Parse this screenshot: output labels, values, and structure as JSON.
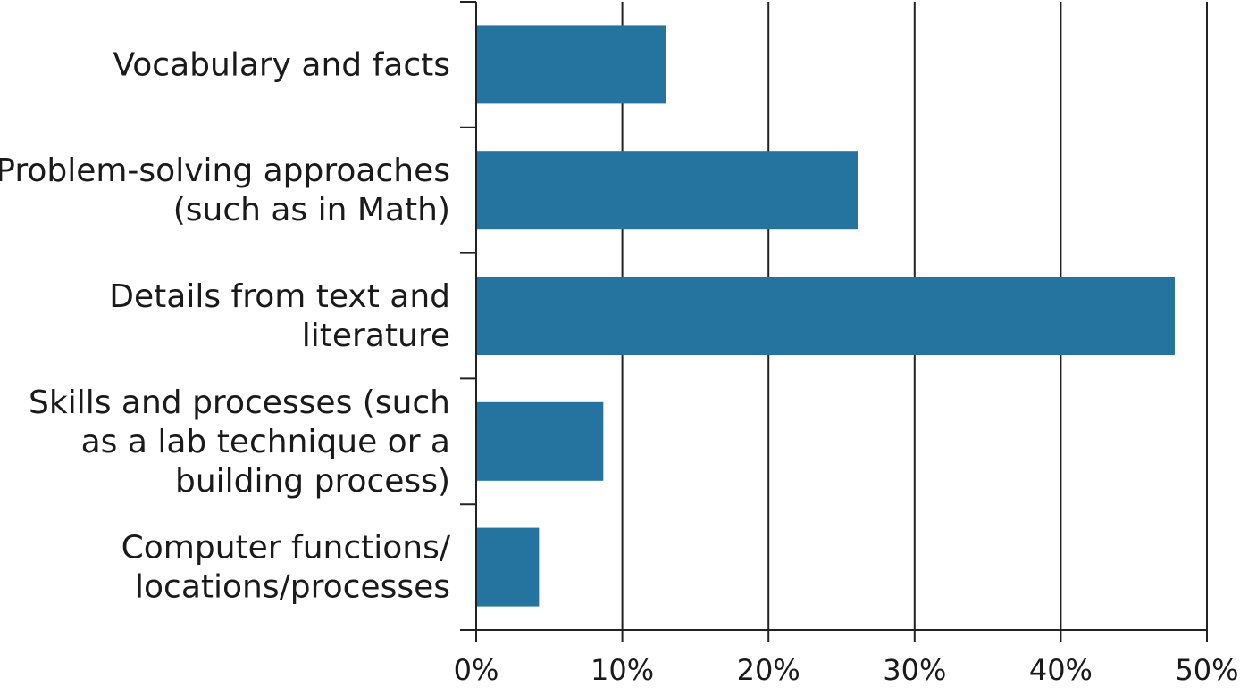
{
  "chart_data": {
    "type": "bar",
    "orientation": "horizontal",
    "title": "",
    "xlabel": "",
    "ylabel": "",
    "categories": [
      [
        "Vocabulary and facts"
      ],
      [
        "Problem-solving approaches",
        "(such as in Math)"
      ],
      [
        "Details from text and",
        "literature"
      ],
      [
        "Skills and processes (such",
        "as a lab technique or a",
        "building process)"
      ],
      [
        "Computer functions/",
        "locations/processes"
      ]
    ],
    "values": [
      13,
      26.1,
      47.8,
      8.7,
      4.3
    ],
    "xlim": [
      0,
      50
    ],
    "ticks": [
      0,
      10,
      20,
      30,
      40,
      50
    ],
    "tick_labels": [
      "0%",
      "10%",
      "20%",
      "30%",
      "40%",
      "50%"
    ],
    "bar_color": "#25749f",
    "grid": "vertical",
    "legend": "none"
  }
}
